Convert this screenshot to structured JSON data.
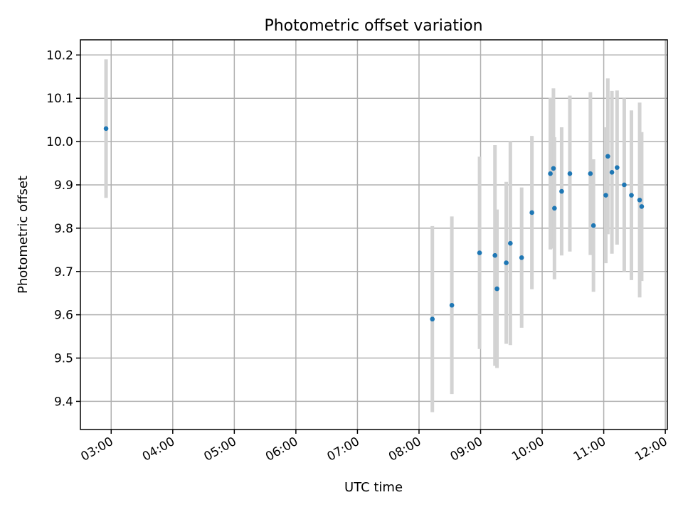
{
  "chart_data": {
    "type": "scatter",
    "title": "Photometric offset variation",
    "xlabel": "UTC time",
    "ylabel": "Photometric offset",
    "xlim": [
      "02:30",
      "12:02"
    ],
    "ylim": [
      9.335,
      10.235
    ],
    "grid": true,
    "x_ticks": [
      "03:00",
      "04:00",
      "05:00",
      "06:00",
      "07:00",
      "08:00",
      "09:00",
      "10:00",
      "11:00",
      "12:00"
    ],
    "y_ticks": [
      9.4,
      9.5,
      9.6,
      9.7,
      9.8,
      9.9,
      10.0,
      10.1,
      10.2
    ],
    "y_tick_labels": [
      "9.4",
      "9.5",
      "9.6",
      "9.7",
      "9.8",
      "9.9",
      "10.0",
      "10.1",
      "10.2"
    ],
    "point_color": "#1f77b4",
    "errorbar_color": "#d3d3d3",
    "points": [
      {
        "x": "02:55",
        "y": 10.03,
        "err": 0.16
      },
      {
        "x": "08:13",
        "y": 9.59,
        "err": 0.215
      },
      {
        "x": "08:32",
        "y": 9.622,
        "err": 0.205
      },
      {
        "x": "08:59",
        "y": 9.743,
        "err": 0.222
      },
      {
        "x": "09:14",
        "y": 9.737,
        "err": 0.255
      },
      {
        "x": "09:16",
        "y": 9.66,
        "err": 0.183
      },
      {
        "x": "09:25",
        "y": 9.72,
        "err": 0.187
      },
      {
        "x": "09:29",
        "y": 9.765,
        "err": 0.235
      },
      {
        "x": "09:40",
        "y": 9.732,
        "err": 0.162
      },
      {
        "x": "09:50",
        "y": 9.836,
        "err": 0.177
      },
      {
        "x": "10:08",
        "y": 9.926,
        "err": 0.175
      },
      {
        "x": "10:11",
        "y": 9.938,
        "err": 0.185
      },
      {
        "x": "10:12",
        "y": 9.846,
        "err": 0.164
      },
      {
        "x": "10:19",
        "y": 9.885,
        "err": 0.148
      },
      {
        "x": "10:27",
        "y": 9.926,
        "err": 0.18
      },
      {
        "x": "10:47",
        "y": 9.926,
        "err": 0.188
      },
      {
        "x": "10:50",
        "y": 9.806,
        "err": 0.153
      },
      {
        "x": "11:02",
        "y": 9.876,
        "err": 0.157
      },
      {
        "x": "11:04",
        "y": 9.966,
        "err": 0.18
      },
      {
        "x": "11:08",
        "y": 9.929,
        "err": 0.188
      },
      {
        "x": "11:13",
        "y": 9.94,
        "err": 0.178
      },
      {
        "x": "11:20",
        "y": 9.9,
        "err": 0.2
      },
      {
        "x": "11:27",
        "y": 9.876,
        "err": 0.196
      },
      {
        "x": "11:35",
        "y": 9.865,
        "err": 0.225
      },
      {
        "x": "11:37",
        "y": 9.85,
        "err": 0.172
      }
    ]
  }
}
